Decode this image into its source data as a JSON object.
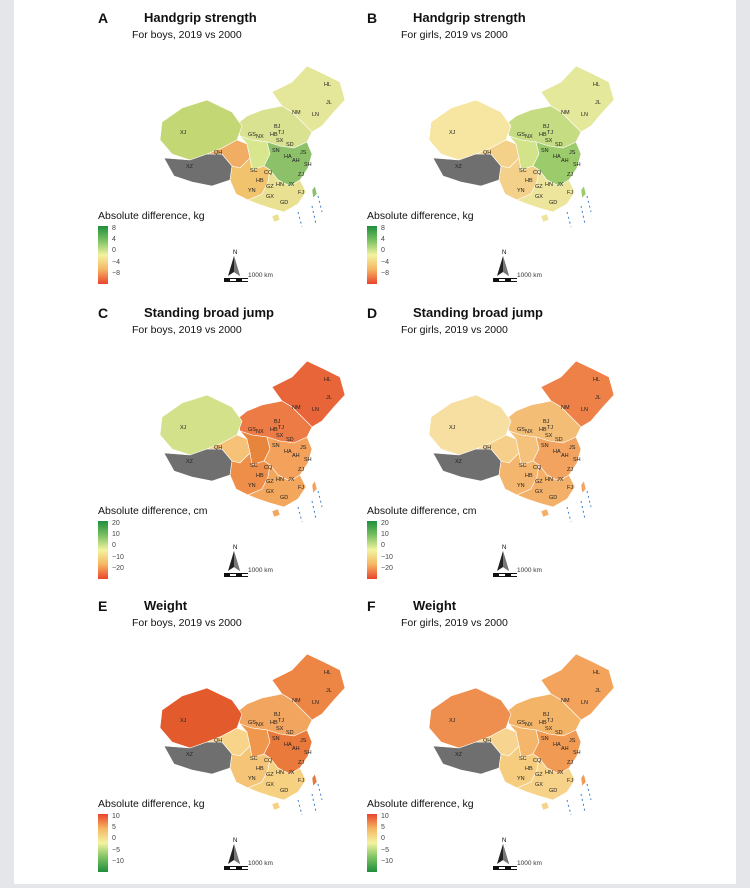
{
  "panels": [
    {
      "label": "A",
      "title": "Handgrip strength",
      "subtitle": "For boys, 2019 vs 2000",
      "legend_title": "Absolute difference, kg",
      "ticks": [
        "8",
        "4",
        "0",
        "−4",
        "−8"
      ],
      "scale_label": "1000 km",
      "palette": "greens_high",
      "colors": {
        "xj": "#c3d875",
        "inner": "#d9e291",
        "east": "#8cc16a",
        "west": "#d8e68e",
        "qh": "#f2ad64",
        "sw": "#f1c36c",
        "south": "#e9e191",
        "ne": "#e4e799"
      }
    },
    {
      "label": "B",
      "title": "Handgrip strength",
      "subtitle": "For girls, 2019 vs 2000",
      "legend_title": "Absolute difference, kg",
      "ticks": [
        "8",
        "4",
        "0",
        "−4",
        "−8"
      ],
      "scale_label": "1000 km",
      "palette": "greens_high",
      "colors": {
        "xj": "#f7e6a2",
        "inner": "#c6dc82",
        "east": "#9ccb6c",
        "west": "#d3e38a",
        "qh": "#f4d188",
        "sw": "#f3d18a",
        "south": "#eee59c",
        "ne": "#e4e89a"
      }
    },
    {
      "label": "C",
      "title": "Standing broad jump",
      "subtitle": "For boys, 2019 vs 2000",
      "legend_title": "Absolute difference, cm",
      "ticks": [
        "20",
        "10",
        "0",
        "−10",
        "−20"
      ],
      "scale_label": "1000 km",
      "palette": "greens_high",
      "colors": {
        "xj": "#d3e18b",
        "inner": "#ec7b45",
        "east": "#f3a15b",
        "west": "#e8853c",
        "qh": "#f5c277",
        "sw": "#ef8e49",
        "south": "#f2a75d",
        "ne": "#e8653a"
      }
    },
    {
      "label": "D",
      "title": "Standing broad jump",
      "subtitle": "For girls, 2019 vs 2000",
      "legend_title": "Absolute difference, cm",
      "ticks": [
        "20",
        "10",
        "0",
        "−10",
        "−20"
      ],
      "scale_label": "1000 km",
      "palette": "greens_high",
      "colors": {
        "xj": "#f6dfa0",
        "inner": "#f4bd75",
        "east": "#f2a35f",
        "west": "#f5c27b",
        "qh": "#f6d08a",
        "sw": "#f4b56e",
        "south": "#f3b068",
        "ne": "#ee8148"
      }
    },
    {
      "label": "E",
      "title": "Weight",
      "subtitle": "For boys, 2019 vs 2000",
      "legend_title": "Absolute difference, kg",
      "ticks": [
        "10",
        "5",
        "0",
        "−5",
        "−10"
      ],
      "scale_label": "1000 km",
      "palette": "reds_high",
      "colors": {
        "xj": "#e35a2c",
        "inner": "#f2a55e",
        "east": "#ea7a3c",
        "west": "#f0974e",
        "qh": "#f7d48a",
        "sw": "#f5c476",
        "south": "#f6d181",
        "ne": "#ed8544"
      }
    },
    {
      "label": "F",
      "title": "Weight",
      "subtitle": "For girls, 2019 vs 2000",
      "legend_title": "Absolute difference, kg",
      "ticks": [
        "10",
        "5",
        "0",
        "−5",
        "−10"
      ],
      "scale_label": "1000 km",
      "palette": "reds_high",
      "colors": {
        "xj": "#ef8f4f",
        "inner": "#f4b468",
        "east": "#f09a54",
        "west": "#f4b66a",
        "qh": "#f7d591",
        "sw": "#f6cd7f",
        "south": "#f7d38a",
        "ne": "#f3a35c"
      }
    }
  ],
  "province_labels": [
    "XJ",
    "XZ",
    "QH",
    "GS",
    "NX",
    "NM",
    "HL",
    "JL",
    "LN",
    "HB",
    "BJ",
    "TJ",
    "SX",
    "SN",
    "SD",
    "HA",
    "AH",
    "JS",
    "SH",
    "SC",
    "CQ",
    "HB",
    "GZ",
    "HN",
    "JX",
    "ZJ",
    "YN",
    "GX",
    "GD",
    "FJ"
  ],
  "tibet_color": "#6f6f6f",
  "legend_palettes": {
    "greens_high": [
      "#1f8f3c",
      "#7cc162",
      "#f3f3a0",
      "#f5b663",
      "#e8452a"
    ],
    "reds_high": [
      "#e8452a",
      "#f5b663",
      "#f3f3a0",
      "#7cc162",
      "#1f8f3c"
    ]
  }
}
